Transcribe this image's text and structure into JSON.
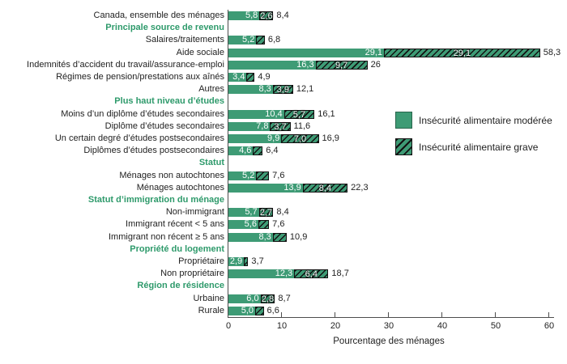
{
  "chart_data": {
    "type": "bar",
    "orientation": "horizontal",
    "stacked": true,
    "xlabel": "Pourcentage des ménages",
    "xlim": [
      0,
      60
    ],
    "xticks": [
      0,
      10,
      20,
      30,
      40,
      50,
      60
    ],
    "grid": false,
    "legend_position": "right-middle",
    "legend": [
      {
        "key": "moderate",
        "label": "Insécurité alimentaire modérée",
        "style": "solid",
        "color": "#3e9b75"
      },
      {
        "key": "severe",
        "label": "Insécurité alimentaire grave",
        "style": "hatched",
        "color": "#3e9b75"
      }
    ],
    "rows": [
      {
        "type": "bar",
        "label": "Canada, ensemble des ménages",
        "moderate": 5.8,
        "moderate_label": "5,8",
        "severe_label": "2,6",
        "total": 8.4,
        "total_label": "8,4"
      },
      {
        "type": "header",
        "label": "Principale source de revenu"
      },
      {
        "type": "bar",
        "label": "Salaires/traitements",
        "moderate": 5.2,
        "moderate_label": "5,2",
        "severe_label": null,
        "total": 6.8,
        "total_label": "6,8"
      },
      {
        "type": "bar",
        "label": "Aide sociale",
        "moderate": 29.1,
        "moderate_label": "29,1",
        "severe_label": "29,1",
        "total": 58.3,
        "total_label": "58,3"
      },
      {
        "type": "bar",
        "label": "Indemnités d’accident du travail/assurance-emploi",
        "moderate": 16.3,
        "moderate_label": "16,3",
        "severe_label": "9,7",
        "total": 26,
        "total_label": "26"
      },
      {
        "type": "bar",
        "label": "Régimes de pension/prestations aux aînés",
        "moderate": 3.4,
        "moderate_label": "3,4",
        "severe_label": null,
        "total": 4.9,
        "total_label": "4,9"
      },
      {
        "type": "bar",
        "label": "Autres",
        "moderate": 8.3,
        "moderate_label": "8,3",
        "severe_label": "3,9",
        "total": 12.1,
        "total_label": "12,1"
      },
      {
        "type": "header",
        "label": "Plus haut niveau d’études"
      },
      {
        "type": "bar",
        "label": "Moins d’un diplôme d’études secondaires",
        "moderate": 10.4,
        "moderate_label": "10,4",
        "severe_label": "5,7",
        "total": 16.1,
        "total_label": "16,1"
      },
      {
        "type": "bar",
        "label": "Diplôme d’études secondaires",
        "moderate": 7.8,
        "moderate_label": "7,8",
        "severe_label": "3,7",
        "total": 11.6,
        "total_label": "11,6"
      },
      {
        "type": "bar",
        "label": "Un certain degré d’études postsecondaires",
        "moderate": 9.9,
        "moderate_label": "9,9",
        "severe_label": "7,0",
        "total": 16.9,
        "total_label": "16,9"
      },
      {
        "type": "bar",
        "label": "Diplômes d’études postsecondaires",
        "moderate": 4.6,
        "moderate_label": "4,6",
        "severe_label": null,
        "total": 6.4,
        "total_label": "6,4"
      },
      {
        "type": "header",
        "label": "Statut"
      },
      {
        "type": "bar",
        "label": "Ménages non autochtones",
        "moderate": 5.2,
        "moderate_label": "5,2",
        "severe_label": null,
        "total": 7.6,
        "total_label": "7,6"
      },
      {
        "type": "bar",
        "label": "Ménages autochtones",
        "moderate": 13.9,
        "moderate_label": "13,9",
        "severe_label": "8,4",
        "total": 22.3,
        "total_label": "22,3"
      },
      {
        "type": "header",
        "label": "Statut d’immigration du ménage"
      },
      {
        "type": "bar",
        "label": "Non-immigrant",
        "moderate": 5.7,
        "moderate_label": "5,7",
        "severe_label": "2,7",
        "total": 8.4,
        "total_label": "8,4"
      },
      {
        "type": "bar",
        "label": "Immigrant récent < 5 ans",
        "moderate": 5.6,
        "moderate_label": "5,6",
        "severe_label": null,
        "total": 7.6,
        "total_label": "7,6"
      },
      {
        "type": "bar",
        "label": "Immigrant non récent ≥ 5 ans",
        "moderate": 8.3,
        "moderate_label": "8,3",
        "severe_label": null,
        "total": 10.9,
        "total_label": "10,9"
      },
      {
        "type": "header",
        "label": "Propriété du logement"
      },
      {
        "type": "bar",
        "label": "Propriétaire",
        "moderate": 2.9,
        "moderate_label": "2,9",
        "severe_label": null,
        "total": 3.7,
        "total_label": "3,7"
      },
      {
        "type": "bar",
        "label": "Non propriétaire",
        "moderate": 12.3,
        "moderate_label": "12,3",
        "severe_label": "6,4",
        "total": 18.7,
        "total_label": "18,7"
      },
      {
        "type": "header",
        "label": "Région de résidence"
      },
      {
        "type": "bar",
        "label": "Urbaine",
        "moderate": 6.0,
        "moderate_label": "6,0",
        "severe_label": "2,8",
        "total": 8.7,
        "total_label": "8,7"
      },
      {
        "type": "bar",
        "label": "Rurale",
        "moderate": 5.0,
        "moderate_label": "5,0",
        "severe_label": null,
        "total": 6.6,
        "total_label": "6,6"
      }
    ]
  },
  "colors": {
    "bar_green": "#3e9b75",
    "header_text_green": "#2e9a6b",
    "axis_gray": "#4d4d4d",
    "text": "#222222"
  }
}
